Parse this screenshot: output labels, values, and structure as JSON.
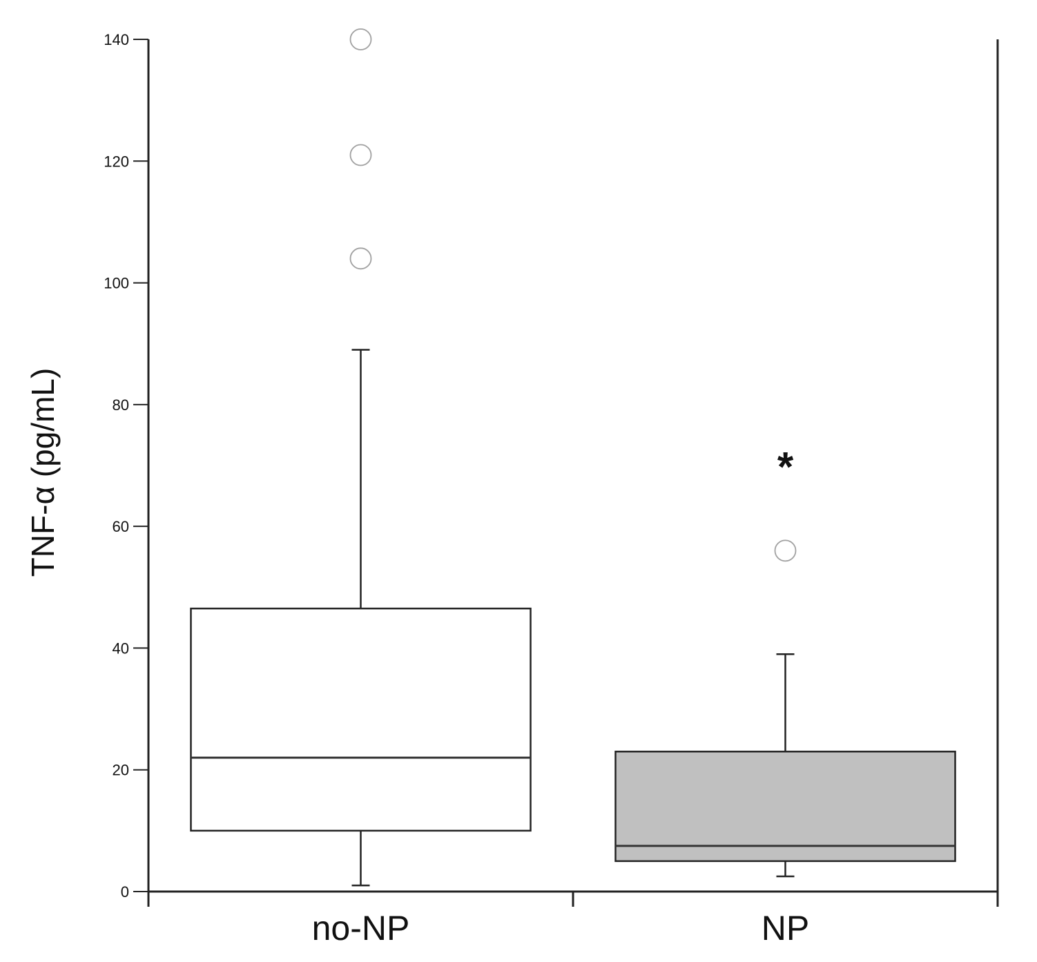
{
  "chart_data": {
    "type": "box",
    "ylabel": "TNF-α (pg/mL)",
    "ylim": [
      0,
      140
    ],
    "yticks": [
      0,
      20,
      40,
      60,
      80,
      100,
      120,
      140
    ],
    "categories": [
      "no-NP",
      "NP"
    ],
    "boxes": [
      {
        "category": "no-NP",
        "whisker_low": 1,
        "q1": 10,
        "median": 22,
        "q3": 46.5,
        "whisker_high": 89,
        "outliers": [
          104,
          121,
          140
        ],
        "fill": "#ffffff"
      },
      {
        "category": "NP",
        "whisker_low": 2.5,
        "q1": 5,
        "median": 7.5,
        "q3": 23,
        "whisker_high": 39,
        "outliers": [
          56
        ],
        "fill": "#c0c0c0"
      }
    ],
    "annotations": [
      {
        "text": "*",
        "category": "NP",
        "y": 72
      }
    ],
    "grid": false,
    "colors": {
      "axis": "#222222",
      "box_stroke": "#222222",
      "outlier_stroke": "#a0a0a0"
    }
  }
}
